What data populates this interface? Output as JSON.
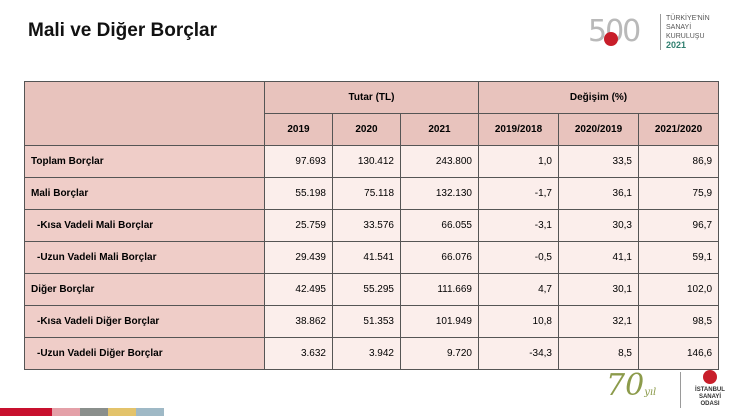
{
  "title": "Mali ve Diğer Borçlar",
  "logo": {
    "number": "500",
    "line1": "TÜRKİYE'NİN",
    "line2": "SANAYİ KURULUŞU",
    "year": "2021"
  },
  "table": {
    "group_headers": {
      "tutar": "Tutar (TL)",
      "degisim": "Değişim (%)"
    },
    "year_headers": [
      "2019",
      "2020",
      "2021"
    ],
    "change_headers": [
      "2019/2018",
      "2020/2019",
      "2021/2020"
    ],
    "rows": [
      {
        "label": "Toplam Borçlar",
        "values": [
          "97.693",
          "130.412",
          "243.800",
          "1,0",
          "33,5",
          "86,9"
        ]
      },
      {
        "label": "Mali Borçlar",
        "values": [
          "55.198",
          "75.118",
          "132.130",
          "-1,7",
          "36,1",
          "75,9"
        ]
      },
      {
        "label": "-Kısa Vadeli Mali Borçlar",
        "values": [
          "25.759",
          "33.576",
          "66.055",
          "-3,1",
          "30,3",
          "96,7"
        ]
      },
      {
        "label": "-Uzun Vadeli Mali Borçlar",
        "values": [
          "29.439",
          "41.541",
          "66.076",
          "-0,5",
          "41,1",
          "59,1"
        ]
      },
      {
        "label": "Diğer Borçlar",
        "values": [
          "42.495",
          "55.295",
          "111.669",
          "4,7",
          "30,1",
          "102,0"
        ]
      },
      {
        "label": "-Kısa Vadeli Diğer Borçlar",
        "values": [
          "38.862",
          "51.353",
          "101.949",
          "10,8",
          "32,1",
          "98,5"
        ]
      },
      {
        "label": "-Uzun Vadeli Diğer Borçlar",
        "values": [
          "3.632",
          "3.942",
          "9.720",
          "-34,3",
          "8,5",
          "146,6"
        ]
      }
    ]
  },
  "footer": {
    "anniversary": "70",
    "yil": "yıl",
    "org_line1": "İSTANBUL",
    "org_line2": "SANAYİ ODASI"
  },
  "colors": {
    "header_bg": "#e8c3bd",
    "cell_bg": "#fbeeeb",
    "label_bg": "#efcdc8",
    "stripe": [
      "#c8102e",
      "#e4a0a8",
      "#8a8f8c",
      "#e3c36b",
      "#9fb9c6"
    ]
  }
}
